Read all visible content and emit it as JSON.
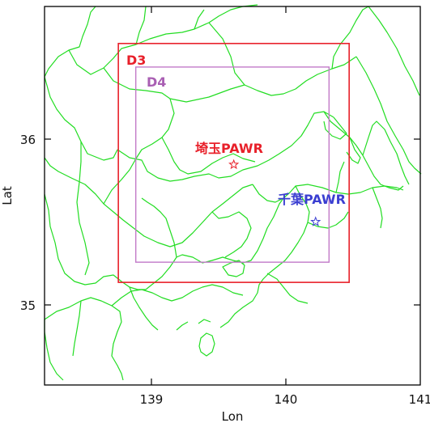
{
  "axes": {
    "xlabel": "Lon",
    "ylabel": "Lat",
    "xlim": [
      138.2,
      141.0
    ],
    "ylim": [
      34.55,
      36.8
    ],
    "xticks": [
      {
        "value": 139,
        "label": "139"
      },
      {
        "value": 140,
        "label": "140"
      },
      {
        "value": 141,
        "label": "141"
      }
    ],
    "yticks": [
      {
        "value": 35,
        "label": "35"
      },
      {
        "value": 36,
        "label": "36"
      }
    ]
  },
  "domains": [
    {
      "label": "D3",
      "color": "#e8202a",
      "lon": [
        138.75,
        140.47
      ],
      "lat": [
        35.16,
        36.58
      ]
    },
    {
      "label": "D4",
      "color": "#c27ac8",
      "lon": [
        138.88,
        140.32
      ],
      "lat": [
        35.28,
        36.44
      ]
    }
  ],
  "radars": [
    {
      "label": "埼玉PAWR",
      "color": "#e8202a",
      "lon": 139.61,
      "lat": 35.86
    },
    {
      "label": "千葉PAWR",
      "color": "#3b3fd1",
      "lon": 140.22,
      "lat": 35.52
    }
  ],
  "coastline_color": "#22dd22"
}
